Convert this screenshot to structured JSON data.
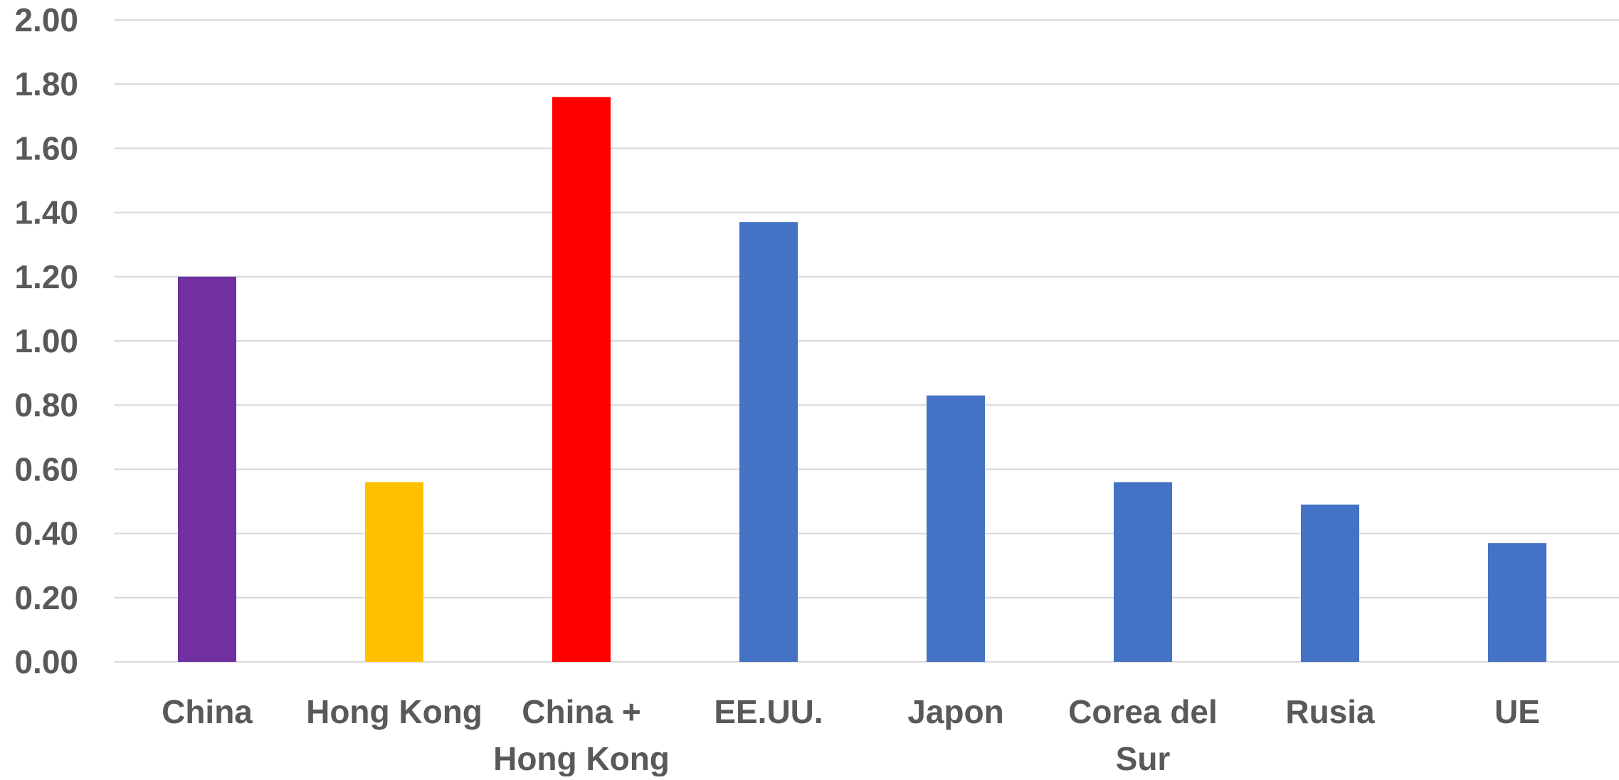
{
  "chart_data": {
    "type": "bar",
    "categories": [
      [
        "China"
      ],
      [
        "Hong Kong"
      ],
      [
        "China +",
        "Hong Kong"
      ],
      [
        "EE.UU."
      ],
      [
        "Japon"
      ],
      [
        "Corea del",
        "Sur"
      ],
      [
        "Rusia"
      ],
      [
        "UE"
      ]
    ],
    "values": [
      1.2,
      0.56,
      1.76,
      1.37,
      0.83,
      0.56,
      0.49,
      0.37
    ],
    "bar_colors": [
      "#7030A0",
      "#FFC000",
      "#FF0000",
      "#4472C4",
      "#4472C4",
      "#4472C4",
      "#4472C4",
      "#4472C4"
    ],
    "yticks": [
      "0.00",
      "0.20",
      "0.40",
      "0.60",
      "0.80",
      "1.00",
      "1.20",
      "1.40",
      "1.60",
      "1.80",
      "2.00"
    ],
    "ylim": [
      0,
      2.0
    ],
    "grid": true,
    "legend": "none",
    "title": "",
    "xlabel": "",
    "ylabel": ""
  },
  "colors": {
    "grid": "#d9d9d9",
    "text": "#595959"
  }
}
